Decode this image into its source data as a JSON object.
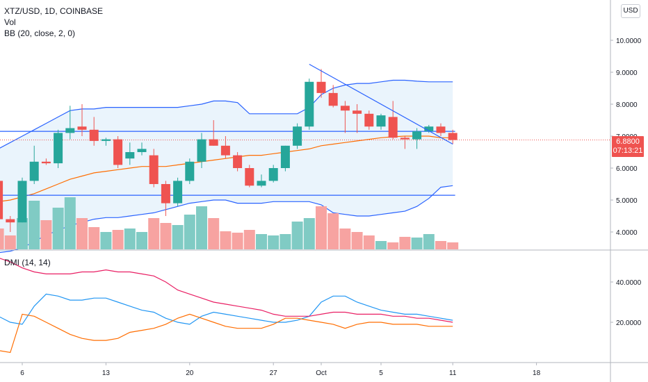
{
  "header": {
    "symbol": "XTZ/USD, 1D, COINBASE",
    "vol_label": "Vol",
    "bb_label": "BB (20, close, 2, 0)",
    "dmi_label": "DMI (14, 14)"
  },
  "currency_button": "USD",
  "price_tag": {
    "price": "6.8800",
    "countdown": "07:13:21"
  },
  "colors": {
    "up": "#26a69a",
    "down": "#ef5350",
    "bb_band": "#2962ff",
    "bb_fill": "#e3f0fb",
    "basis": "#ff6d00",
    "dmi_plus": "#2196f3",
    "dmi_minus": "#ff6d00",
    "adx": "#e91e63",
    "level_line": "#2962ff"
  },
  "chart_data": [
    {
      "type": "candlestick",
      "title": "XTZ/USD, 1D, COINBASE",
      "ylim": [
        3.5,
        10.8
      ],
      "yticks": [
        "4.0000",
        "5.0000",
        "6.0000",
        "7.0000",
        "8.0000",
        "9.0000",
        "10.0000"
      ],
      "xticks": [
        {
          "label": "6",
          "day": 6
        },
        {
          "label": "13",
          "day": 13
        },
        {
          "label": "20",
          "day": 20
        },
        {
          "label": "27",
          "day": 27
        },
        {
          "label": "Oct",
          "day": 31
        },
        {
          "label": "5",
          "day": 36
        },
        {
          "label": "11",
          "day": 42
        },
        {
          "label": "18",
          "day": 49
        }
      ],
      "candles": [
        {
          "day": 1,
          "o": 5.3,
          "h": 5.4,
          "l": 5.2,
          "c": 5.4
        },
        {
          "day": 2,
          "o": 5.4,
          "h": 5.5,
          "l": 5.3,
          "c": 5.5
        },
        {
          "day": 3,
          "o": 5.5,
          "h": 5.6,
          "l": 5.4,
          "c": 5.55
        },
        {
          "day": 4,
          "o": 5.6,
          "h": 5.7,
          "l": 4.3,
          "c": 4.4
        },
        {
          "day": 5,
          "o": 4.4,
          "h": 4.5,
          "l": 4.0,
          "c": 4.3
        },
        {
          "day": 6,
          "o": 4.3,
          "h": 5.7,
          "l": 4.3,
          "c": 5.6
        },
        {
          "day": 7,
          "o": 5.6,
          "h": 6.7,
          "l": 5.5,
          "c": 6.2
        },
        {
          "day": 8,
          "o": 6.2,
          "h": 6.3,
          "l": 6.1,
          "c": 6.15
        },
        {
          "day": 9,
          "o": 6.15,
          "h": 7.2,
          "l": 6.0,
          "c": 7.1
        },
        {
          "day": 10,
          "o": 7.1,
          "h": 7.95,
          "l": 6.9,
          "c": 7.25
        },
        {
          "day": 11,
          "o": 7.3,
          "h": 8.0,
          "l": 7.0,
          "c": 7.2
        },
        {
          "day": 12,
          "o": 7.2,
          "h": 7.6,
          "l": 6.7,
          "c": 6.85
        },
        {
          "day": 13,
          "o": 6.85,
          "h": 6.95,
          "l": 6.7,
          "c": 6.9
        },
        {
          "day": 14,
          "o": 6.9,
          "h": 7.0,
          "l": 6.0,
          "c": 6.1
        },
        {
          "day": 15,
          "o": 6.3,
          "h": 6.8,
          "l": 6.1,
          "c": 6.5
        },
        {
          "day": 16,
          "o": 6.5,
          "h": 6.8,
          "l": 6.4,
          "c": 6.6
        },
        {
          "day": 17,
          "o": 6.4,
          "h": 6.6,
          "l": 5.4,
          "c": 5.5
        },
        {
          "day": 18,
          "o": 5.5,
          "h": 5.6,
          "l": 4.5,
          "c": 4.9
        },
        {
          "day": 19,
          "o": 4.9,
          "h": 5.7,
          "l": 4.8,
          "c": 5.6
        },
        {
          "day": 20,
          "o": 5.6,
          "h": 6.3,
          "l": 5.5,
          "c": 6.2
        },
        {
          "day": 21,
          "o": 6.2,
          "h": 7.1,
          "l": 6.0,
          "c": 6.9
        },
        {
          "day": 22,
          "o": 6.9,
          "h": 7.5,
          "l": 6.7,
          "c": 6.7
        },
        {
          "day": 23,
          "o": 6.7,
          "h": 7.0,
          "l": 6.3,
          "c": 6.4
        },
        {
          "day": 24,
          "o": 6.4,
          "h": 6.5,
          "l": 5.9,
          "c": 6.0
        },
        {
          "day": 25,
          "o": 6.0,
          "h": 6.1,
          "l": 5.4,
          "c": 5.45
        },
        {
          "day": 26,
          "o": 5.45,
          "h": 5.8,
          "l": 5.4,
          "c": 5.6
        },
        {
          "day": 27,
          "o": 5.6,
          "h": 6.1,
          "l": 5.55,
          "c": 6.0
        },
        {
          "day": 28,
          "o": 6.0,
          "h": 6.7,
          "l": 5.9,
          "c": 6.7
        },
        {
          "day": 29,
          "o": 6.7,
          "h": 7.4,
          "l": 6.6,
          "c": 7.3
        },
        {
          "day": 30,
          "o": 7.3,
          "h": 8.8,
          "l": 7.2,
          "c": 8.7
        },
        {
          "day": 31,
          "o": 8.7,
          "h": 9.1,
          "l": 8.2,
          "c": 8.35
        },
        {
          "day": 32,
          "o": 8.35,
          "h": 8.6,
          "l": 7.9,
          "c": 7.95
        },
        {
          "day": 33,
          "o": 7.95,
          "h": 8.1,
          "l": 7.1,
          "c": 7.8
        },
        {
          "day": 34,
          "o": 7.8,
          "h": 8.0,
          "l": 7.1,
          "c": 7.7
        },
        {
          "day": 35,
          "o": 7.7,
          "h": 7.8,
          "l": 7.2,
          "c": 7.3
        },
        {
          "day": 36,
          "o": 7.3,
          "h": 7.7,
          "l": 7.2,
          "c": 7.65
        },
        {
          "day": 37,
          "o": 7.6,
          "h": 8.1,
          "l": 6.9,
          "c": 6.95
        },
        {
          "day": 38,
          "o": 6.95,
          "h": 7.0,
          "l": 6.6,
          "c": 6.9
        },
        {
          "day": 39,
          "o": 6.9,
          "h": 7.25,
          "l": 6.6,
          "c": 7.15
        },
        {
          "day": 40,
          "o": 7.15,
          "h": 7.35,
          "l": 7.1,
          "c": 7.3
        },
        {
          "day": 41,
          "o": 7.3,
          "h": 7.4,
          "l": 7.0,
          "c": 7.1
        },
        {
          "day": 42,
          "o": 7.1,
          "h": 7.2,
          "l": 6.75,
          "c": 6.88
        }
      ],
      "volume": [
        0.1,
        0.12,
        0.15,
        0.3,
        0.2,
        0.45,
        0.7,
        0.42,
        0.6,
        0.75,
        0.45,
        0.32,
        0.25,
        0.28,
        0.3,
        0.25,
        0.45,
        0.38,
        0.35,
        0.5,
        0.62,
        0.45,
        0.26,
        0.24,
        0.28,
        0.22,
        0.2,
        0.22,
        0.4,
        0.45,
        0.62,
        0.52,
        0.3,
        0.25,
        0.2,
        0.12,
        0.1,
        0.18,
        0.17,
        0.22,
        0.12,
        0.1
      ],
      "bollinger": {
        "upper": [
          6.3,
          6.4,
          6.5,
          6.6,
          6.8,
          7.0,
          7.2,
          7.4,
          7.6,
          7.8,
          7.85,
          7.85,
          7.9,
          7.9,
          7.9,
          7.9,
          7.9,
          7.9,
          7.9,
          7.95,
          8.0,
          8.1,
          8.1,
          8.05,
          7.7,
          7.7,
          7.7,
          7.7,
          7.7,
          7.9,
          8.3,
          8.5,
          8.6,
          8.65,
          8.65,
          8.7,
          8.75,
          8.75,
          8.72,
          8.7,
          8.7,
          8.7
        ],
        "basis": [
          4.8,
          4.85,
          4.9,
          4.95,
          5.0,
          5.1,
          5.2,
          5.35,
          5.5,
          5.65,
          5.75,
          5.85,
          5.9,
          5.95,
          6.0,
          6.05,
          6.05,
          6.05,
          6.1,
          6.15,
          6.2,
          6.25,
          6.3,
          6.35,
          6.4,
          6.4,
          6.45,
          6.5,
          6.55,
          6.6,
          6.7,
          6.75,
          6.8,
          6.85,
          6.9,
          6.95,
          6.98,
          7.0,
          7.0,
          7.0,
          6.95,
          6.95
        ],
        "lower": [
          3.3,
          3.3,
          3.3,
          3.35,
          3.4,
          3.5,
          3.7,
          3.9,
          4.05,
          4.2,
          4.3,
          4.4,
          4.45,
          4.45,
          4.5,
          4.55,
          4.6,
          4.7,
          4.8,
          4.9,
          4.95,
          5.0,
          5.0,
          4.9,
          4.9,
          4.9,
          4.95,
          4.95,
          4.95,
          4.95,
          4.85,
          4.6,
          4.55,
          4.5,
          4.5,
          4.55,
          4.6,
          4.65,
          4.8,
          5.05,
          5.4,
          5.45
        ]
      },
      "horizontal_levels": [
        7.15,
        5.15
      ],
      "trendline": [
        {
          "day": 30,
          "value": 9.25
        },
        {
          "day": 42,
          "value": 6.75
        }
      ],
      "last_price": 6.88
    },
    {
      "type": "line",
      "title": "DMI (14, 14)",
      "ylim": [
        0,
        60
      ],
      "yticks": [
        "20.0000",
        "40.0000"
      ],
      "series": [
        {
          "name": "+DI",
          "values": [
            24,
            24,
            25,
            23,
            20,
            19,
            28,
            34,
            33,
            31,
            31,
            32,
            32,
            30,
            28,
            26,
            25,
            22,
            20,
            19,
            23,
            25,
            24,
            23,
            22,
            21,
            20,
            20,
            21,
            23,
            30,
            33,
            33,
            30,
            28,
            26,
            25,
            24,
            24,
            23,
            22,
            21
          ]
        },
        {
          "name": "-DI",
          "values": [
            7,
            7,
            7,
            6,
            5,
            24,
            23,
            20,
            17,
            14,
            12,
            11,
            11,
            12,
            15,
            16,
            17,
            19,
            22,
            24,
            22,
            20,
            18,
            17,
            17,
            17,
            19,
            22,
            22,
            21,
            20,
            19,
            17,
            19,
            20,
            20,
            19,
            19,
            19,
            18,
            18,
            18
          ]
        },
        {
          "name": "ADX",
          "values": [
            55,
            54,
            53,
            52,
            50,
            47,
            45,
            44,
            44,
            44,
            45,
            45,
            46,
            45,
            45,
            44,
            43,
            40,
            36,
            34,
            32,
            30,
            29,
            28,
            27,
            26,
            24,
            23,
            23,
            23,
            24,
            25,
            25,
            24,
            24,
            24,
            23,
            23,
            22,
            22,
            21,
            20
          ]
        }
      ]
    }
  ]
}
